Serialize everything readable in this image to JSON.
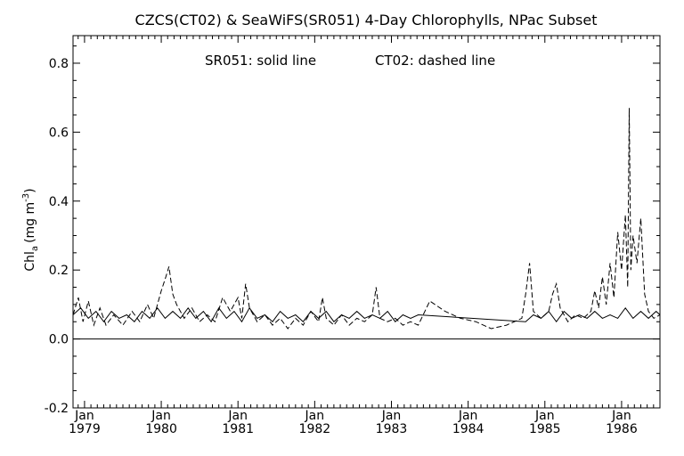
{
  "chart_data": {
    "type": "line",
    "title": "CZCS(CT02) & SeaWiFS(SR051) 4-Day Chlorophylls, NPac Subset",
    "annotation_solid": "SR051: solid line",
    "annotation_dashed": "CT02: dashed line",
    "ylabel": "Chl",
    "ylabel_sub": "a",
    "ylabel_unit": "(mg m",
    "ylabel_sup": "-3",
    "ylabel_close": ")",
    "xlim": [
      1978.85,
      1986.5
    ],
    "ylim": [
      -0.2,
      0.88
    ],
    "x_ticks": [
      {
        "pos": 1979.0,
        "month": "Jan",
        "year": "1979"
      },
      {
        "pos": 1980.0,
        "month": "Jan",
        "year": "1980"
      },
      {
        "pos": 1981.0,
        "month": "Jan",
        "year": "1981"
      },
      {
        "pos": 1982.0,
        "month": "Jan",
        "year": "1982"
      },
      {
        "pos": 1983.0,
        "month": "Jan",
        "year": "1983"
      },
      {
        "pos": 1984.0,
        "month": "Jan",
        "year": "1984"
      },
      {
        "pos": 1985.0,
        "month": "Jan",
        "year": "1985"
      },
      {
        "pos": 1986.0,
        "month": "Jan",
        "year": "1986"
      }
    ],
    "y_ticks": [
      {
        "value": -0.2,
        "label": "-0.2"
      },
      {
        "value": 0.0,
        "label": "0.0"
      },
      {
        "value": 0.2,
        "label": "0.2"
      },
      {
        "value": 0.4,
        "label": "0.4"
      },
      {
        "value": 0.6,
        "label": "0.6"
      },
      {
        "value": 0.8,
        "label": "0.8"
      }
    ],
    "reference_line": 0.0,
    "series": [
      {
        "name": "SR051",
        "style": "solid",
        "points": [
          [
            1978.85,
            0.07
          ],
          [
            1978.95,
            0.09
          ],
          [
            1979.05,
            0.06
          ],
          [
            1979.15,
            0.08
          ],
          [
            1979.25,
            0.05
          ],
          [
            1979.35,
            0.08
          ],
          [
            1979.45,
            0.06
          ],
          [
            1979.55,
            0.07
          ],
          [
            1979.65,
            0.05
          ],
          [
            1979.75,
            0.08
          ],
          [
            1979.85,
            0.06
          ],
          [
            1979.95,
            0.09
          ],
          [
            1980.05,
            0.06
          ],
          [
            1980.15,
            0.08
          ],
          [
            1980.25,
            0.06
          ],
          [
            1980.35,
            0.09
          ],
          [
            1980.45,
            0.06
          ],
          [
            1980.55,
            0.08
          ],
          [
            1980.65,
            0.05
          ],
          [
            1980.75,
            0.09
          ],
          [
            1980.85,
            0.06
          ],
          [
            1980.95,
            0.08
          ],
          [
            1981.05,
            0.05
          ],
          [
            1981.15,
            0.09
          ],
          [
            1981.25,
            0.06
          ],
          [
            1981.35,
            0.07
          ],
          [
            1981.45,
            0.05
          ],
          [
            1981.55,
            0.08
          ],
          [
            1981.65,
            0.06
          ],
          [
            1981.75,
            0.07
          ],
          [
            1981.85,
            0.05
          ],
          [
            1981.95,
            0.08
          ],
          [
            1982.05,
            0.06
          ],
          [
            1982.15,
            0.08
          ],
          [
            1982.25,
            0.05
          ],
          [
            1982.35,
            0.07
          ],
          [
            1982.45,
            0.06
          ],
          [
            1982.55,
            0.08
          ],
          [
            1982.65,
            0.06
          ],
          [
            1982.75,
            0.07
          ],
          [
            1982.85,
            0.06
          ],
          [
            1982.95,
            0.08
          ],
          [
            1983.05,
            0.05
          ],
          [
            1983.15,
            0.07
          ],
          [
            1983.25,
            0.06
          ],
          [
            1983.35,
            0.07
          ],
          [
            1984.75,
            0.05
          ],
          [
            1984.85,
            0.07
          ],
          [
            1984.95,
            0.06
          ],
          [
            1985.05,
            0.08
          ],
          [
            1985.15,
            0.05
          ],
          [
            1985.25,
            0.08
          ],
          [
            1985.35,
            0.06
          ],
          [
            1985.45,
            0.07
          ],
          [
            1985.55,
            0.06
          ],
          [
            1985.65,
            0.08
          ],
          [
            1985.75,
            0.06
          ],
          [
            1985.85,
            0.07
          ],
          [
            1985.95,
            0.06
          ],
          [
            1986.05,
            0.09
          ],
          [
            1986.15,
            0.06
          ],
          [
            1986.25,
            0.08
          ],
          [
            1986.35,
            0.06
          ],
          [
            1986.45,
            0.08
          ],
          [
            1986.5,
            0.07
          ]
        ]
      },
      {
        "name": "CT02",
        "style": "dashed",
        "points": [
          [
            1978.85,
            0.07
          ],
          [
            1978.92,
            0.12
          ],
          [
            1978.98,
            0.05
          ],
          [
            1979.05,
            0.11
          ],
          [
            1979.12,
            0.04
          ],
          [
            1979.2,
            0.09
          ],
          [
            1979.28,
            0.04
          ],
          [
            1979.38,
            0.07
          ],
          [
            1979.5,
            0.04
          ],
          [
            1979.62,
            0.08
          ],
          [
            1979.72,
            0.05
          ],
          [
            1979.82,
            0.1
          ],
          [
            1979.9,
            0.06
          ],
          [
            1980.0,
            0.14
          ],
          [
            1980.06,
            0.18
          ],
          [
            1980.1,
            0.21
          ],
          [
            1980.15,
            0.13
          ],
          [
            1980.2,
            0.1
          ],
          [
            1980.3,
            0.06
          ],
          [
            1980.4,
            0.09
          ],
          [
            1980.5,
            0.05
          ],
          [
            1980.6,
            0.07
          ],
          [
            1980.7,
            0.05
          ],
          [
            1980.8,
            0.12
          ],
          [
            1980.9,
            0.08
          ],
          [
            1981.0,
            0.12
          ],
          [
            1981.05,
            0.06
          ],
          [
            1981.1,
            0.16
          ],
          [
            1981.15,
            0.09
          ],
          [
            1981.25,
            0.05
          ],
          [
            1981.35,
            0.07
          ],
          [
            1981.45,
            0.04
          ],
          [
            1981.55,
            0.06
          ],
          [
            1981.65,
            0.03
          ],
          [
            1981.75,
            0.06
          ],
          [
            1981.85,
            0.04
          ],
          [
            1981.95,
            0.08
          ],
          [
            1982.05,
            0.05
          ],
          [
            1982.1,
            0.12
          ],
          [
            1982.15,
            0.06
          ],
          [
            1982.25,
            0.04
          ],
          [
            1982.35,
            0.07
          ],
          [
            1982.45,
            0.04
          ],
          [
            1982.55,
            0.06
          ],
          [
            1982.65,
            0.05
          ],
          [
            1982.75,
            0.07
          ],
          [
            1982.8,
            0.15
          ],
          [
            1982.85,
            0.06
          ],
          [
            1982.95,
            0.05
          ],
          [
            1983.05,
            0.06
          ],
          [
            1983.15,
            0.04
          ],
          [
            1983.25,
            0.05
          ],
          [
            1983.35,
            0.04
          ],
          [
            1983.5,
            0.11
          ],
          [
            1983.7,
            0.08
          ],
          [
            1983.9,
            0.06
          ],
          [
            1984.1,
            0.05
          ],
          [
            1984.3,
            0.03
          ],
          [
            1984.5,
            0.04
          ],
          [
            1984.7,
            0.06
          ],
          [
            1984.75,
            0.13
          ],
          [
            1984.8,
            0.22
          ],
          [
            1984.85,
            0.08
          ],
          [
            1984.95,
            0.06
          ],
          [
            1985.05,
            0.08
          ],
          [
            1985.1,
            0.13
          ],
          [
            1985.15,
            0.16
          ],
          [
            1985.2,
            0.09
          ],
          [
            1985.3,
            0.05
          ],
          [
            1985.4,
            0.07
          ],
          [
            1985.5,
            0.06
          ],
          [
            1985.6,
            0.08
          ],
          [
            1985.65,
            0.14
          ],
          [
            1985.7,
            0.09
          ],
          [
            1985.75,
            0.18
          ],
          [
            1985.8,
            0.1
          ],
          [
            1985.85,
            0.22
          ],
          [
            1985.9,
            0.12
          ],
          [
            1985.95,
            0.31
          ],
          [
            1986.0,
            0.2
          ],
          [
            1986.05,
            0.36
          ],
          [
            1986.08,
            0.15
          ],
          [
            1986.1,
            0.67
          ],
          [
            1986.12,
            0.2
          ],
          [
            1986.15,
            0.3
          ],
          [
            1986.2,
            0.22
          ],
          [
            1986.25,
            0.35
          ],
          [
            1986.3,
            0.13
          ],
          [
            1986.35,
            0.08
          ],
          [
            1986.42,
            0.06
          ],
          [
            1986.5,
            0.07
          ]
        ]
      }
    ]
  }
}
